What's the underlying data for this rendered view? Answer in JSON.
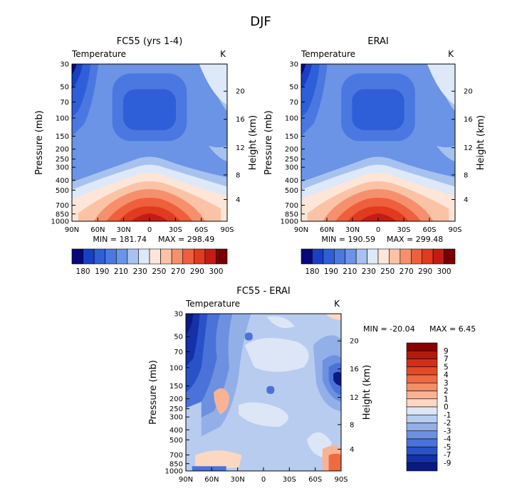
{
  "figure": {
    "title": "DJF"
  },
  "chart_data": [
    {
      "id": "fc55",
      "type": "heatmap",
      "title": "FC55 (yrs 1-4)",
      "left_label": "Temperature",
      "right_label": "K",
      "ylabel": "Pressure (mb)",
      "y2label": "Height (km)",
      "x_ticks": [
        "90N",
        "60N",
        "30N",
        "0",
        "30S",
        "60S",
        "90S"
      ],
      "y_ticks": [
        "30",
        "50",
        "70",
        "100",
        "150",
        "200",
        "250",
        "300",
        "400",
        "500",
        "700",
        "850",
        "1000"
      ],
      "y2_ticks": [
        "20",
        "16",
        "12",
        "8",
        "4"
      ],
      "min_label": "MIN = 181.74",
      "max_label": "MAX = 298.49",
      "min": 181.74,
      "max": 298.49,
      "levels": [
        180,
        190,
        200,
        210,
        220,
        230,
        240,
        250,
        260,
        270,
        280,
        290,
        300
      ],
      "level_labels": [
        "180",
        "190",
        "210",
        "230",
        "250",
        "270",
        "290",
        "300"
      ],
      "colors": [
        "#08087a",
        "#1a3fc4",
        "#2e5fd9",
        "#4a78e0",
        "#6b93e6",
        "#a7c2ef",
        "#dde8f8",
        "#fde6d8",
        "#fbc3a6",
        "#f6906c",
        "#ef5f3c",
        "#e03a1f",
        "#c41c14",
        "#7a0000"
      ]
    },
    {
      "id": "erai",
      "type": "heatmap",
      "title": "ERAI",
      "left_label": "Temperature",
      "right_label": "K",
      "ylabel": "Pressure (mb)",
      "y2label": "Height (km)",
      "x_ticks": [
        "90N",
        "60N",
        "30N",
        "0",
        "30S",
        "60S",
        "90S"
      ],
      "y_ticks": [
        "30",
        "50",
        "70",
        "100",
        "150",
        "200",
        "250",
        "300",
        "400",
        "500",
        "700",
        "850",
        "1000"
      ],
      "y2_ticks": [
        "20",
        "16",
        "12",
        "8",
        "4"
      ],
      "min_label": "MIN = 190.59",
      "max_label": "MAX = 299.48",
      "min": 190.59,
      "max": 299.48,
      "levels": [
        180,
        190,
        200,
        210,
        220,
        230,
        240,
        250,
        260,
        270,
        280,
        290,
        300
      ],
      "level_labels": [
        "180",
        "190",
        "210",
        "230",
        "250",
        "270",
        "290",
        "300"
      ],
      "colors": [
        "#08087a",
        "#1a3fc4",
        "#2e5fd9",
        "#4a78e0",
        "#6b93e6",
        "#a7c2ef",
        "#dde8f8",
        "#fde6d8",
        "#fbc3a6",
        "#f6906c",
        "#ef5f3c",
        "#e03a1f",
        "#c41c14",
        "#7a0000"
      ]
    },
    {
      "id": "diff",
      "type": "heatmap",
      "title": "FC55 - ERAI",
      "left_label": "Temperature",
      "right_label": "K",
      "ylabel": "Pressure (mb)",
      "y2label": "Height (km)",
      "x_ticks": [
        "90N",
        "60N",
        "30N",
        "0",
        "30S",
        "60S",
        "90S"
      ],
      "y_ticks": [
        "30",
        "50",
        "70",
        "100",
        "150",
        "200",
        "250",
        "300",
        "400",
        "500",
        "700",
        "850",
        "1000"
      ],
      "y2_ticks": [
        "20",
        "16",
        "12",
        "8",
        "4"
      ],
      "min_label": "MIN = -20.04",
      "max_label": "MAX =   6.45",
      "min": -20.04,
      "max": 6.45,
      "level_labels": [
        "9",
        "7",
        "5",
        "4",
        "3",
        "2",
        "1",
        "0",
        "-1",
        "-2",
        "-3",
        "-4",
        "-5",
        "-7",
        "-9"
      ],
      "colors": [
        "#8b0000",
        "#b21a0c",
        "#d0301a",
        "#e34a26",
        "#ee6a40",
        "#f38e66",
        "#f8b394",
        "#fcd8c2",
        "#dce6f6",
        "#b8ccf0",
        "#93afe8",
        "#6d90e0",
        "#4a72d8",
        "#2a52c8",
        "#1431a8",
        "#0a1a80"
      ]
    }
  ]
}
